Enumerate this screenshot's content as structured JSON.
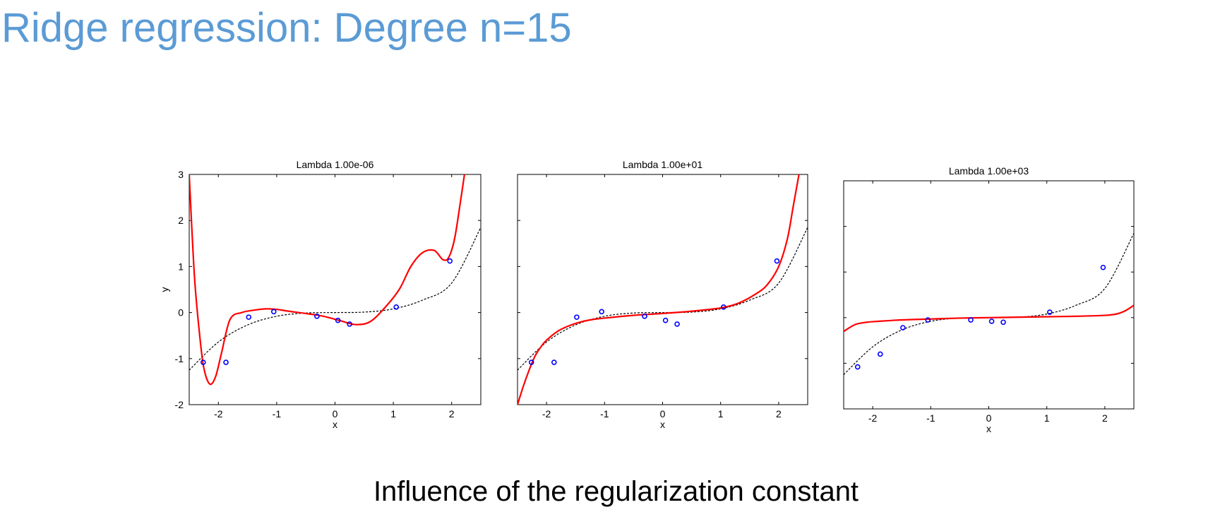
{
  "slide": {
    "title": "Ridge regression: Degree n=15",
    "caption": "Influence of the regularization constant"
  },
  "colors": {
    "title": "#5b9bd5",
    "fit": "#ff0000",
    "truth": "#000000",
    "points": "#0000ff"
  },
  "chart_data": [
    {
      "type": "line",
      "title": "Lambda 1.00e-06",
      "xlabel": "x",
      "ylabel": "y",
      "xlim": [
        -2.5,
        2.5
      ],
      "ylim": [
        -2,
        3
      ],
      "xticks": [
        -2,
        -1,
        0,
        1,
        2
      ],
      "yticks": [
        -2,
        -1,
        0,
        1,
        2,
        3
      ],
      "xticklabels": [
        "-2",
        "-1",
        "0",
        "1",
        "2"
      ],
      "yticklabels": [
        "-2",
        "-1",
        "0",
        "1",
        "2",
        "3"
      ],
      "grid": false,
      "points": {
        "x": [
          -2.26,
          -1.87,
          -1.48,
          -1.05,
          -0.31,
          0.05,
          0.25,
          1.05,
          1.97
        ],
        "y": [
          -1.08,
          -1.08,
          -0.1,
          0.02,
          -0.08,
          -0.17,
          -0.25,
          0.12,
          1.12
        ]
      },
      "series": [
        {
          "style": "dotted",
          "x": [
            -2.5,
            -2.0,
            -1.5,
            -1.0,
            -0.5,
            0.0,
            0.5,
            1.0,
            1.5,
            2.0,
            2.5
          ],
          "y": [
            -1.25,
            -0.64,
            -0.27,
            -0.08,
            -0.01,
            0.0,
            0.01,
            0.08,
            0.27,
            0.64,
            1.85
          ]
        },
        {
          "style": "solid",
          "x": [
            -2.5,
            -2.45,
            -2.4,
            -2.32,
            -2.25,
            -2.15,
            -2.05,
            -1.95,
            -1.8,
            -1.6,
            -1.4,
            -1.2,
            -1.0,
            -0.8,
            -0.5,
            -0.2,
            0.1,
            0.35,
            0.6,
            0.85,
            1.1,
            1.3,
            1.5,
            1.7,
            1.85,
            1.95,
            2.05,
            2.15,
            2.22
          ],
          "y": [
            3.0,
            1.7,
            0.6,
            -0.5,
            -1.2,
            -1.55,
            -1.4,
            -0.9,
            -0.15,
            0.0,
            0.05,
            0.08,
            0.07,
            0.03,
            -0.02,
            -0.08,
            -0.18,
            -0.26,
            -0.2,
            0.1,
            0.5,
            1.0,
            1.3,
            1.35,
            1.15,
            1.2,
            1.6,
            2.4,
            3.0
          ]
        }
      ]
    },
    {
      "type": "line",
      "title": "Lambda 1.00e+01",
      "xlabel": "x",
      "ylabel": "",
      "xlim": [
        -2.5,
        2.5
      ],
      "ylim": [
        -2,
        3
      ],
      "xticks": [
        -2,
        -1,
        0,
        1,
        2
      ],
      "yticks": [
        -2,
        -1,
        0,
        1,
        2,
        3
      ],
      "xticklabels": [
        "-2",
        "-1",
        "0",
        "1",
        "2"
      ],
      "yticklabels": [],
      "grid": false,
      "points": {
        "x": [
          -2.26,
          -1.87,
          -1.48,
          -1.05,
          -0.31,
          0.05,
          0.25,
          1.05,
          1.97
        ],
        "y": [
          -1.08,
          -1.08,
          -0.1,
          0.02,
          -0.08,
          -0.17,
          -0.25,
          0.12,
          1.12
        ]
      },
      "series": [
        {
          "style": "dotted",
          "x": [
            -2.5,
            -2.0,
            -1.5,
            -1.0,
            -0.5,
            0.0,
            0.5,
            1.0,
            1.5,
            2.0,
            2.5
          ],
          "y": [
            -1.25,
            -0.64,
            -0.27,
            -0.08,
            -0.01,
            0.0,
            0.01,
            0.08,
            0.27,
            0.64,
            1.85
          ]
        },
        {
          "style": "solid",
          "x": [
            -2.5,
            -2.4,
            -2.3,
            -2.2,
            -2.1,
            -2.0,
            -1.8,
            -1.6,
            -1.4,
            -1.2,
            -1.0,
            -0.5,
            0.0,
            0.5,
            1.0,
            1.3,
            1.6,
            1.8,
            2.0,
            2.15,
            2.25,
            2.35
          ],
          "y": [
            -2.0,
            -1.6,
            -1.25,
            -0.95,
            -0.75,
            -0.6,
            -0.4,
            -0.28,
            -0.2,
            -0.15,
            -0.12,
            -0.06,
            -0.02,
            0.03,
            0.1,
            0.2,
            0.4,
            0.6,
            1.0,
            1.6,
            2.3,
            3.0
          ]
        }
      ]
    },
    {
      "type": "line",
      "title": "Lambda 1.00e+03",
      "xlabel": "x",
      "ylabel": "",
      "xlim": [
        -2.5,
        2.5
      ],
      "ylim": [
        -2,
        3
      ],
      "xticks": [
        -2,
        -1,
        0,
        1,
        2
      ],
      "yticks": [
        -2,
        -1,
        0,
        1,
        2,
        3
      ],
      "xticklabels": [
        "-2",
        "-1",
        "0",
        "1",
        "2"
      ],
      "yticklabels": [],
      "grid": false,
      "points": {
        "x": [
          -2.26,
          -1.87,
          -1.48,
          -1.05,
          -0.31,
          0.05,
          0.25,
          1.05,
          1.97
        ],
        "y": [
          -1.08,
          -0.8,
          -0.22,
          -0.05,
          -0.05,
          -0.08,
          -0.1,
          0.12,
          1.1
        ]
      },
      "series": [
        {
          "style": "dotted",
          "x": [
            -2.5,
            -2.0,
            -1.5,
            -1.0,
            -0.5,
            0.0,
            0.5,
            1.0,
            1.5,
            2.0,
            2.5
          ],
          "y": [
            -1.25,
            -0.64,
            -0.27,
            -0.08,
            -0.01,
            0.0,
            0.01,
            0.08,
            0.27,
            0.64,
            1.85
          ]
        },
        {
          "style": "solid",
          "x": [
            -2.5,
            -2.3,
            -2.1,
            -1.9,
            -1.5,
            -1.0,
            -0.5,
            0.0,
            0.5,
            1.0,
            1.5,
            2.0,
            2.2,
            2.35,
            2.5
          ],
          "y": [
            -0.3,
            -0.15,
            -0.1,
            -0.08,
            -0.05,
            -0.03,
            -0.01,
            0.0,
            0.01,
            0.02,
            0.03,
            0.05,
            0.08,
            0.15,
            0.27
          ]
        }
      ]
    }
  ]
}
